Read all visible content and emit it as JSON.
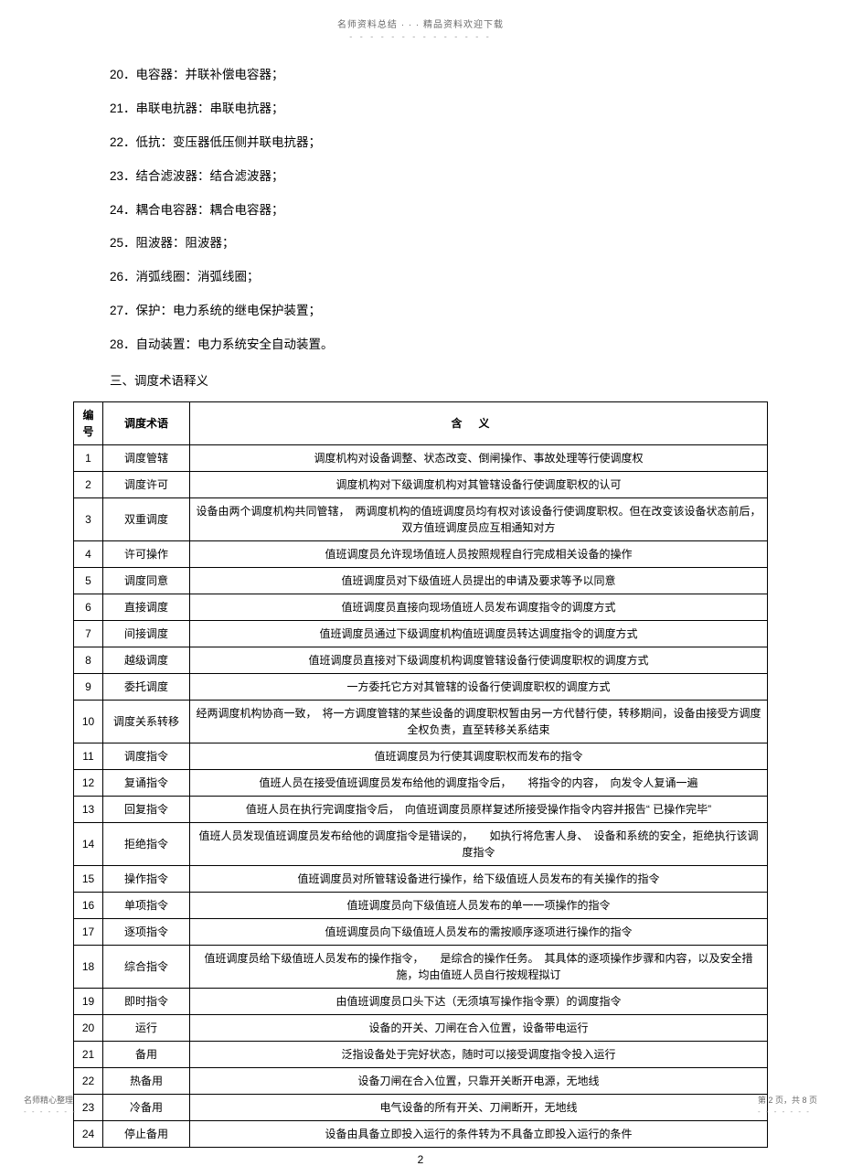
{
  "header": {
    "text": "名师资料总结 · · · 精品资料欢迎下载",
    "dashes": "- - - - - - - - - - - - - -"
  },
  "definitions": [
    "20．电容器：并联补偿电容器；",
    "21．串联电抗器：串联电抗器；",
    "22．低抗：变压器低压侧并联电抗器；",
    "23．结合滤波器：结合滤波器；",
    "24．耦合电容器：耦合电容器；",
    "25．阻波器：阻波器；",
    "26．消弧线圈：消弧线圈；",
    "27．保护：电力系统的继电保护装置；",
    "28．自动装置：电力系统安全自动装置。"
  ],
  "section_title": "三、调度术语释义",
  "table": {
    "headers": {
      "num": "编号",
      "term": "调度术语",
      "meaning": "含义"
    },
    "rows": [
      {
        "n": "1",
        "t": "调度管辖",
        "m": "调度机构对设备调整、状态改变、倒闸操作、事故处理等行使调度权"
      },
      {
        "n": "2",
        "t": "调度许可",
        "m": "调度机构对下级调度机构对其管辖设备行使调度职权的认可"
      },
      {
        "n": "3",
        "t": "双重调度",
        "m": "设备由两个调度机构共同管辖，　两调度机构的值班调度员均有权对该设备行使调度职权。但在改变该设备状态前后，双方值班调度员应互相通知对方"
      },
      {
        "n": "4",
        "t": "许可操作",
        "m": "值班调度员允许现场值班人员按照规程自行完成相关设备的操作"
      },
      {
        "n": "5",
        "t": "调度同意",
        "m": "值班调度员对下级值班人员提出的申请及要求等予以同意"
      },
      {
        "n": "6",
        "t": "直接调度",
        "m": "值班调度员直接向现场值班人员发布调度指令的调度方式"
      },
      {
        "n": "7",
        "t": "间接调度",
        "m": "值班调度员通过下级调度机构值班调度员转达调度指令的调度方式"
      },
      {
        "n": "8",
        "t": "越级调度",
        "m": "值班调度员直接对下级调度机构调度管辖设备行使调度职权的调度方式"
      },
      {
        "n": "9",
        "t": "委托调度",
        "m": "一方委托它方对其管辖的设备行使调度职权的调度方式"
      },
      {
        "n": "10",
        "t": "调度关系转移",
        "m": "经两调度机构协商一致，　将一方调度管辖的某些设备的调度职权暂由另一方代替行使，转移期间，设备由接受方调度全权负责，直至转移关系结束"
      },
      {
        "n": "11",
        "t": "调度指令",
        "m": "值班调度员为行使其调度职权而发布的指令"
      },
      {
        "n": "12",
        "t": "复诵指令",
        "m": "值班人员在接受值班调度员发布给他的调度指令后，　　将指令的内容，　向发令人复诵一遍"
      },
      {
        "n": "13",
        "t": "回复指令",
        "m": "值班人员在执行完调度指令后，　向值班调度员原样复述所接受操作指令内容并报告“ 已操作完毕”"
      },
      {
        "n": "14",
        "t": "拒绝指令",
        "m": "值班人员发现值班调度员发布给他的调度指令是错误的，　　如执行将危害人身、　设备和系统的安全，拒绝执行该调度指令"
      },
      {
        "n": "15",
        "t": "操作指令",
        "m": "值班调度员对所管辖设备进行操作，给下级值班人员发布的有关操作的指令"
      },
      {
        "n": "16",
        "t": "单项指令",
        "m": "值班调度员向下级值班人员发布的单一一项操作的指令"
      },
      {
        "n": "17",
        "t": "逐项指令",
        "m": "值班调度员向下级值班人员发布的需按顺序逐项进行操作的指令"
      },
      {
        "n": "18",
        "t": "综合指令",
        "m": "值班调度员给下级值班人员发布的操作指令，　　是综合的操作任务。　其具体的逐项操作步骤和内容，以及安全措施，均由值班人员自行按规程拟订"
      },
      {
        "n": "19",
        "t": "即时指令",
        "m": "由值班调度员口头下达（无须填写操作指令票）的调度指令"
      },
      {
        "n": "20",
        "t": "运行",
        "m": "设备的开关、刀闸在合入位置，设备带电运行"
      },
      {
        "n": "21",
        "t": "备用",
        "m": "泛指设备处于完好状态，随时可以接受调度指令投入运行"
      },
      {
        "n": "22",
        "t": "热备用",
        "m": "设备刀闸在合入位置，只靠开关断开电源，无地线"
      },
      {
        "n": "23",
        "t": "冷备用",
        "m": "电气设备的所有开关、刀闸断开，无地线"
      },
      {
        "n": "24",
        "t": "停止备用",
        "m": "设备由具备立即投入运行的条件转为不具备立即投入运行的条件"
      }
    ]
  },
  "page_number": "2",
  "footer": {
    "left": "名师精心整理",
    "right": "第 2 页，共 8 页",
    "dashes": "- - - - - - -"
  }
}
